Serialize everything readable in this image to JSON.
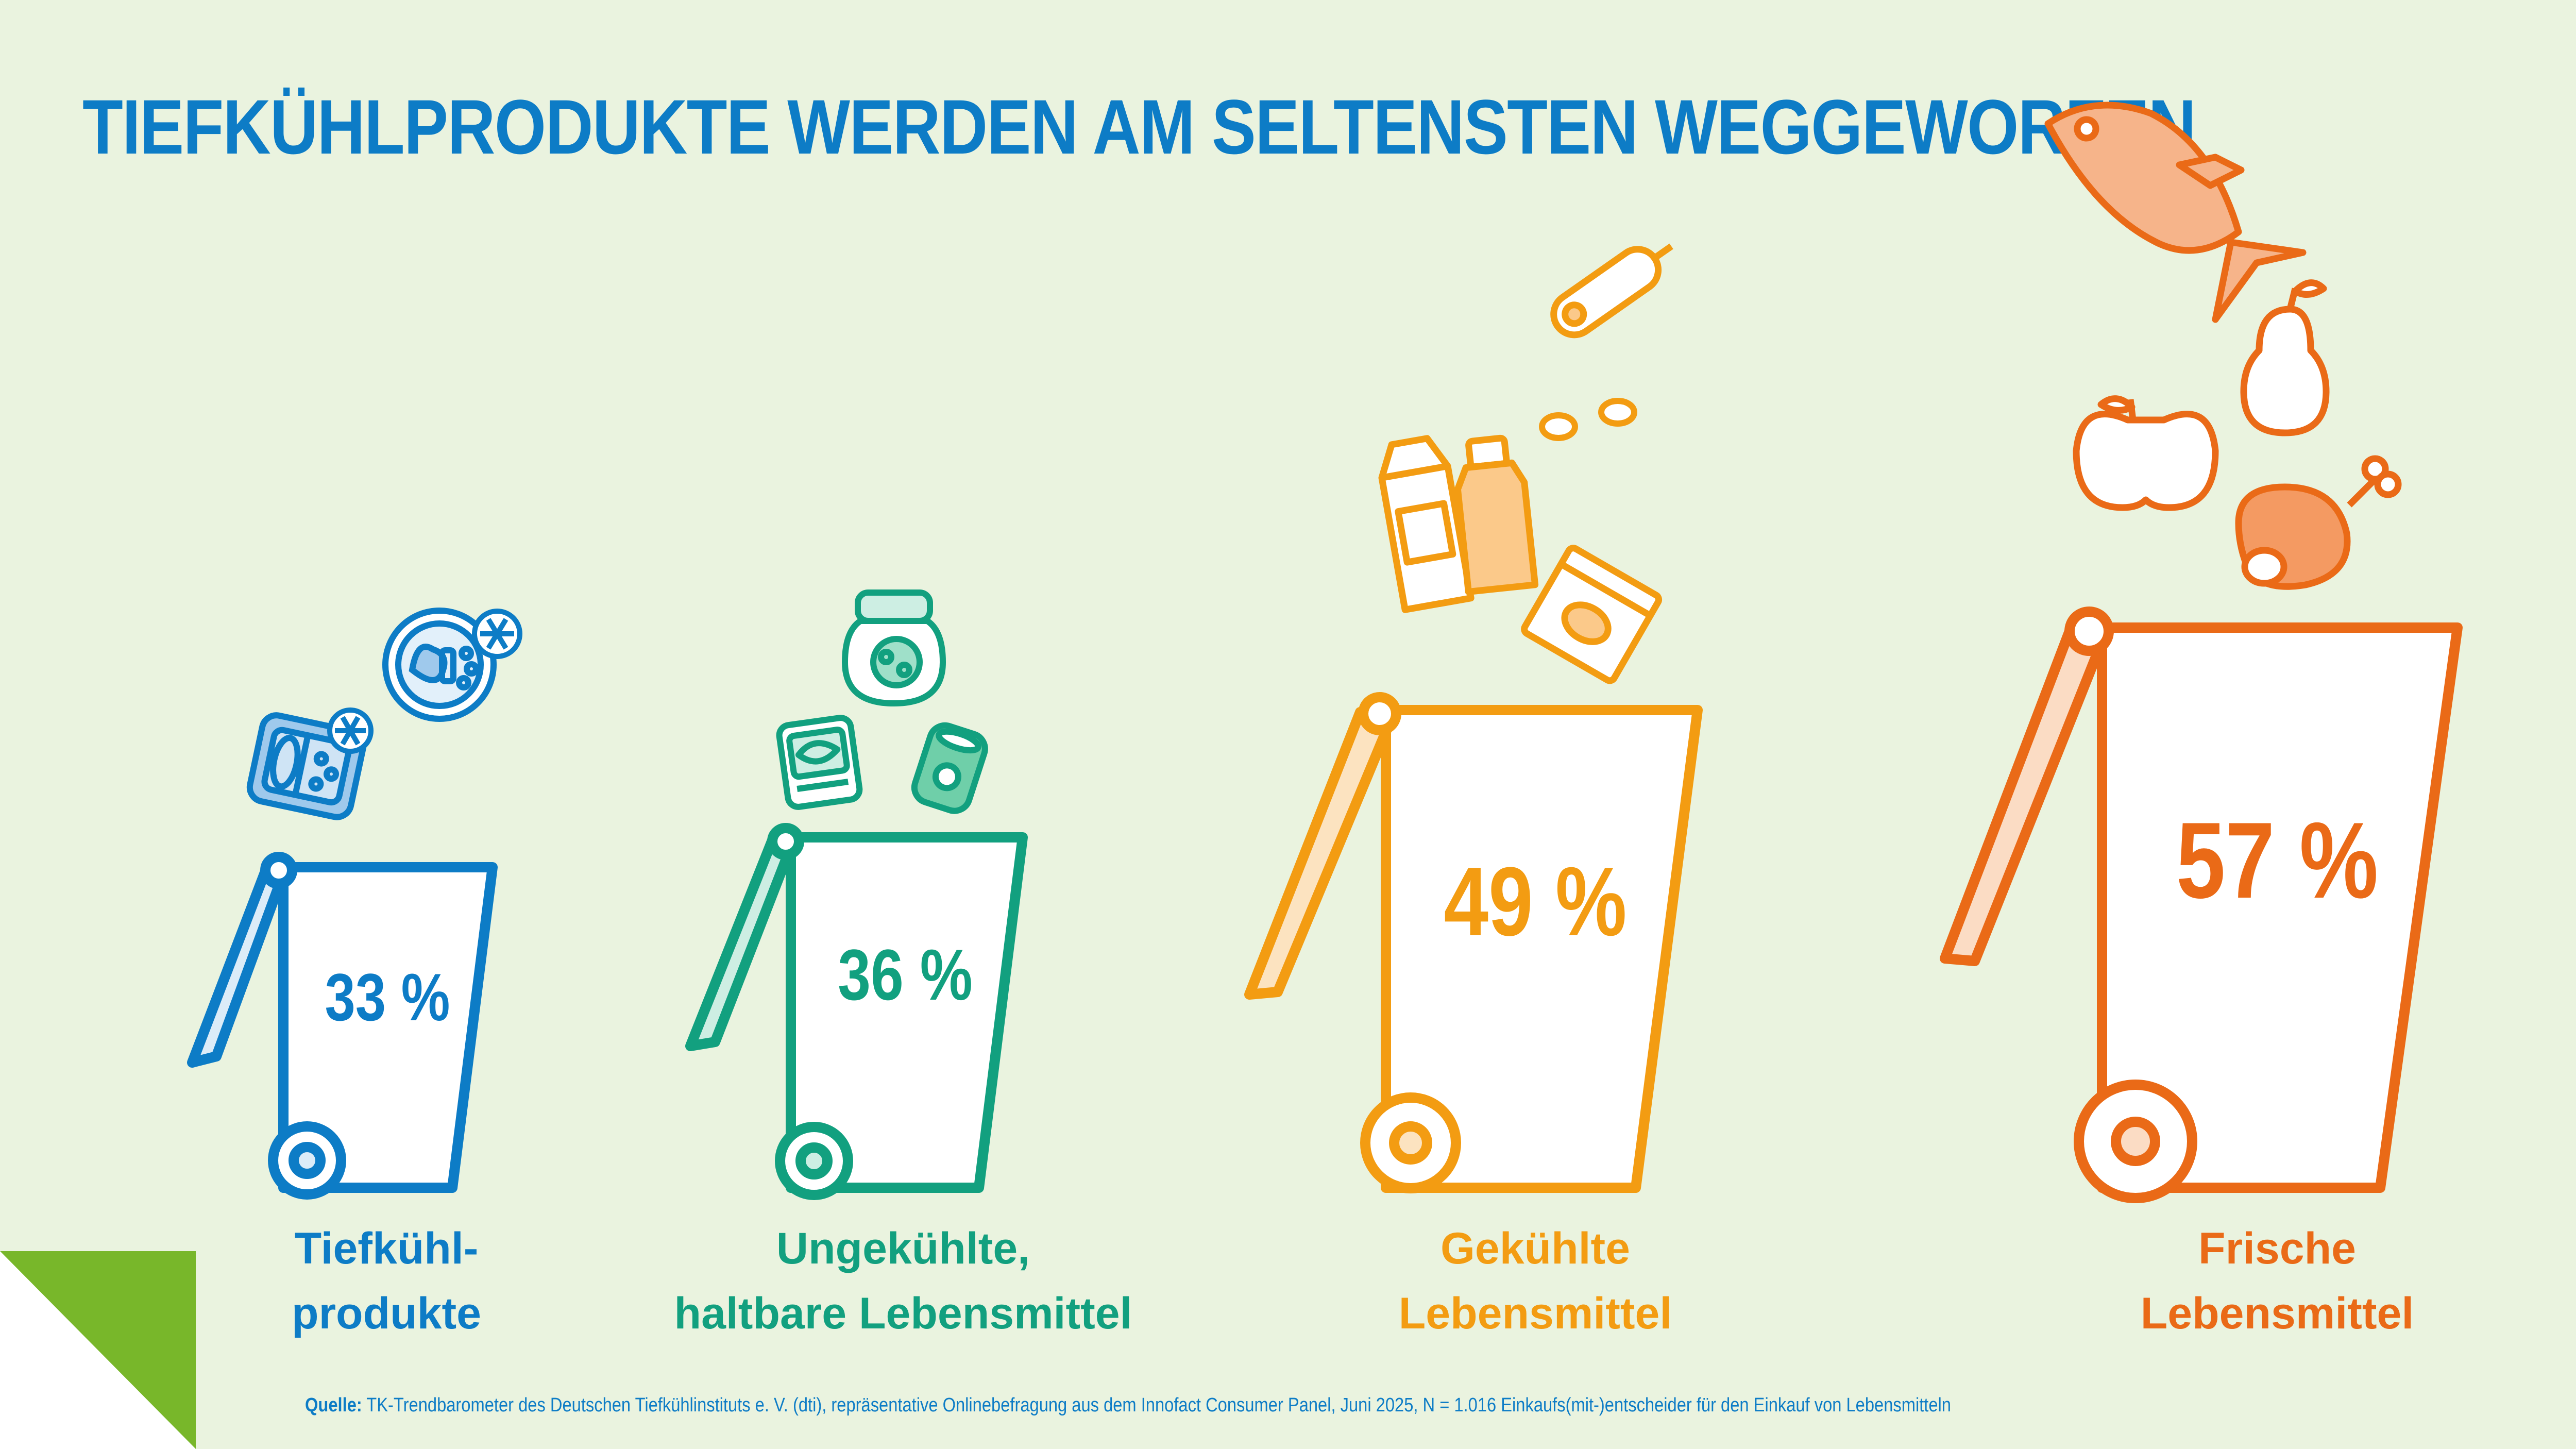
{
  "chart_data": {
    "type": "bar",
    "title": "TIEFKÜHLPRODUKTE WERDEN AM SELTENSTEN WEGGEWORFEN",
    "categories": [
      "Tiefkühlprodukte",
      "Ungekühlte, haltbare Lebensmittel",
      "Gekühlte Lebensmittel",
      "Frische Lebensmittel"
    ],
    "category_lines": [
      [
        "Tiefkühl-",
        "produkte"
      ],
      [
        "Ungekühlte,",
        "haltbare Lebensmittel"
      ],
      [
        "Gekühlte",
        "Lebensmittel"
      ],
      [
        "Frische",
        "Lebensmittel"
      ]
    ],
    "values": [
      33,
      36,
      49,
      57
    ],
    "value_labels": [
      "33 %",
      "36 %",
      "49 %",
      "57 %"
    ],
    "unit": "%",
    "colors": [
      "#0d7cc6",
      "#12a07f",
      "#f39c12",
      "#ea6a17"
    ],
    "icons": [
      [
        "frozen-meal-tray-icon",
        "frozen-plate-icon"
      ],
      [
        "jar-icon",
        "tin-can-icon",
        "canned-fish-icon"
      ],
      [
        "milk-carton-icon",
        "juice-bottle-icon",
        "sausage-icon",
        "yogurt-cup-icon"
      ],
      [
        "fish-icon",
        "pear-icon",
        "apple-icon",
        "ham-leg-icon"
      ]
    ]
  },
  "source": {
    "label": "Quelle:",
    "text": "TK-Trendbarometer des Deutschen Tiefkühlinstituts e. V. (dti), repräsentative Onlinebefragung aus dem Innofact Consumer Panel, Juni 2025, N = 1.016 Einkaufs(mit-)entscheider für den Einkauf von Lebensmitteln"
  },
  "accent_color": "#78b72a"
}
